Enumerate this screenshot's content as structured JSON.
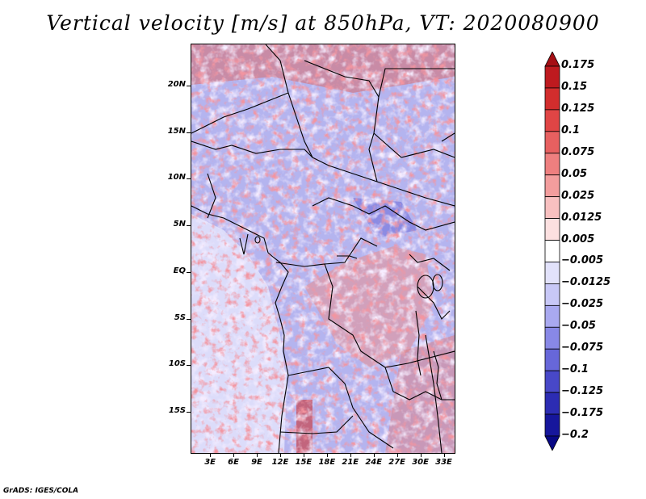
{
  "title": "Vertical velocity [m/s] at 850hPa, VT: 2020080900",
  "footer": "GrADS: IGES/COLA",
  "map": {
    "lat_range": [
      -19.5,
      24.5
    ],
    "lon_range": [
      0.5,
      34.5
    ],
    "y_ticks": [
      {
        "lat": 20,
        "label": "20N"
      },
      {
        "lat": 15,
        "label": "15N"
      },
      {
        "lat": 10,
        "label": "10N"
      },
      {
        "lat": 5,
        "label": "5N"
      },
      {
        "lat": 0,
        "label": "EQ"
      },
      {
        "lat": -5,
        "label": "5S"
      },
      {
        "lat": -10,
        "label": "10S"
      },
      {
        "lat": -15,
        "label": "15S"
      }
    ],
    "x_ticks": [
      {
        "lon": 3,
        "label": "3E"
      },
      {
        "lon": 6,
        "label": "6E"
      },
      {
        "lon": 9,
        "label": "9E"
      },
      {
        "lon": 12,
        "label": "12E"
      },
      {
        "lon": 15,
        "label": "15E"
      },
      {
        "lon": 18,
        "label": "18E"
      },
      {
        "lon": 21,
        "label": "21E"
      },
      {
        "lon": 24,
        "label": "24E"
      },
      {
        "lon": 27,
        "label": "27E"
      },
      {
        "lon": 30,
        "label": "30E"
      },
      {
        "lon": 33,
        "label": "33E"
      }
    ]
  },
  "colorbar": {
    "labels": [
      "0.175",
      "0.15",
      "0.125",
      "0.1",
      "0.075",
      "0.05",
      "0.025",
      "0.0125",
      "0.005",
      "−0.005",
      "−0.0125",
      "−0.025",
      "−0.05",
      "−0.075",
      "−0.1",
      "−0.125",
      "−0.175",
      "−0.2"
    ],
    "colors": [
      "#a50f15",
      "#be1a1f",
      "#d22d2d",
      "#e04545",
      "#e76060",
      "#ee7f7f",
      "#f39d9d",
      "#f8c0c0",
      "#fce0e0",
      "#ffffff",
      "#e2e2fb",
      "#c8c8f7",
      "#a9a9f0",
      "#8888e6",
      "#6767d9",
      "#4848c8",
      "#2c2cb3",
      "#16169c",
      "#080885"
    ]
  }
}
